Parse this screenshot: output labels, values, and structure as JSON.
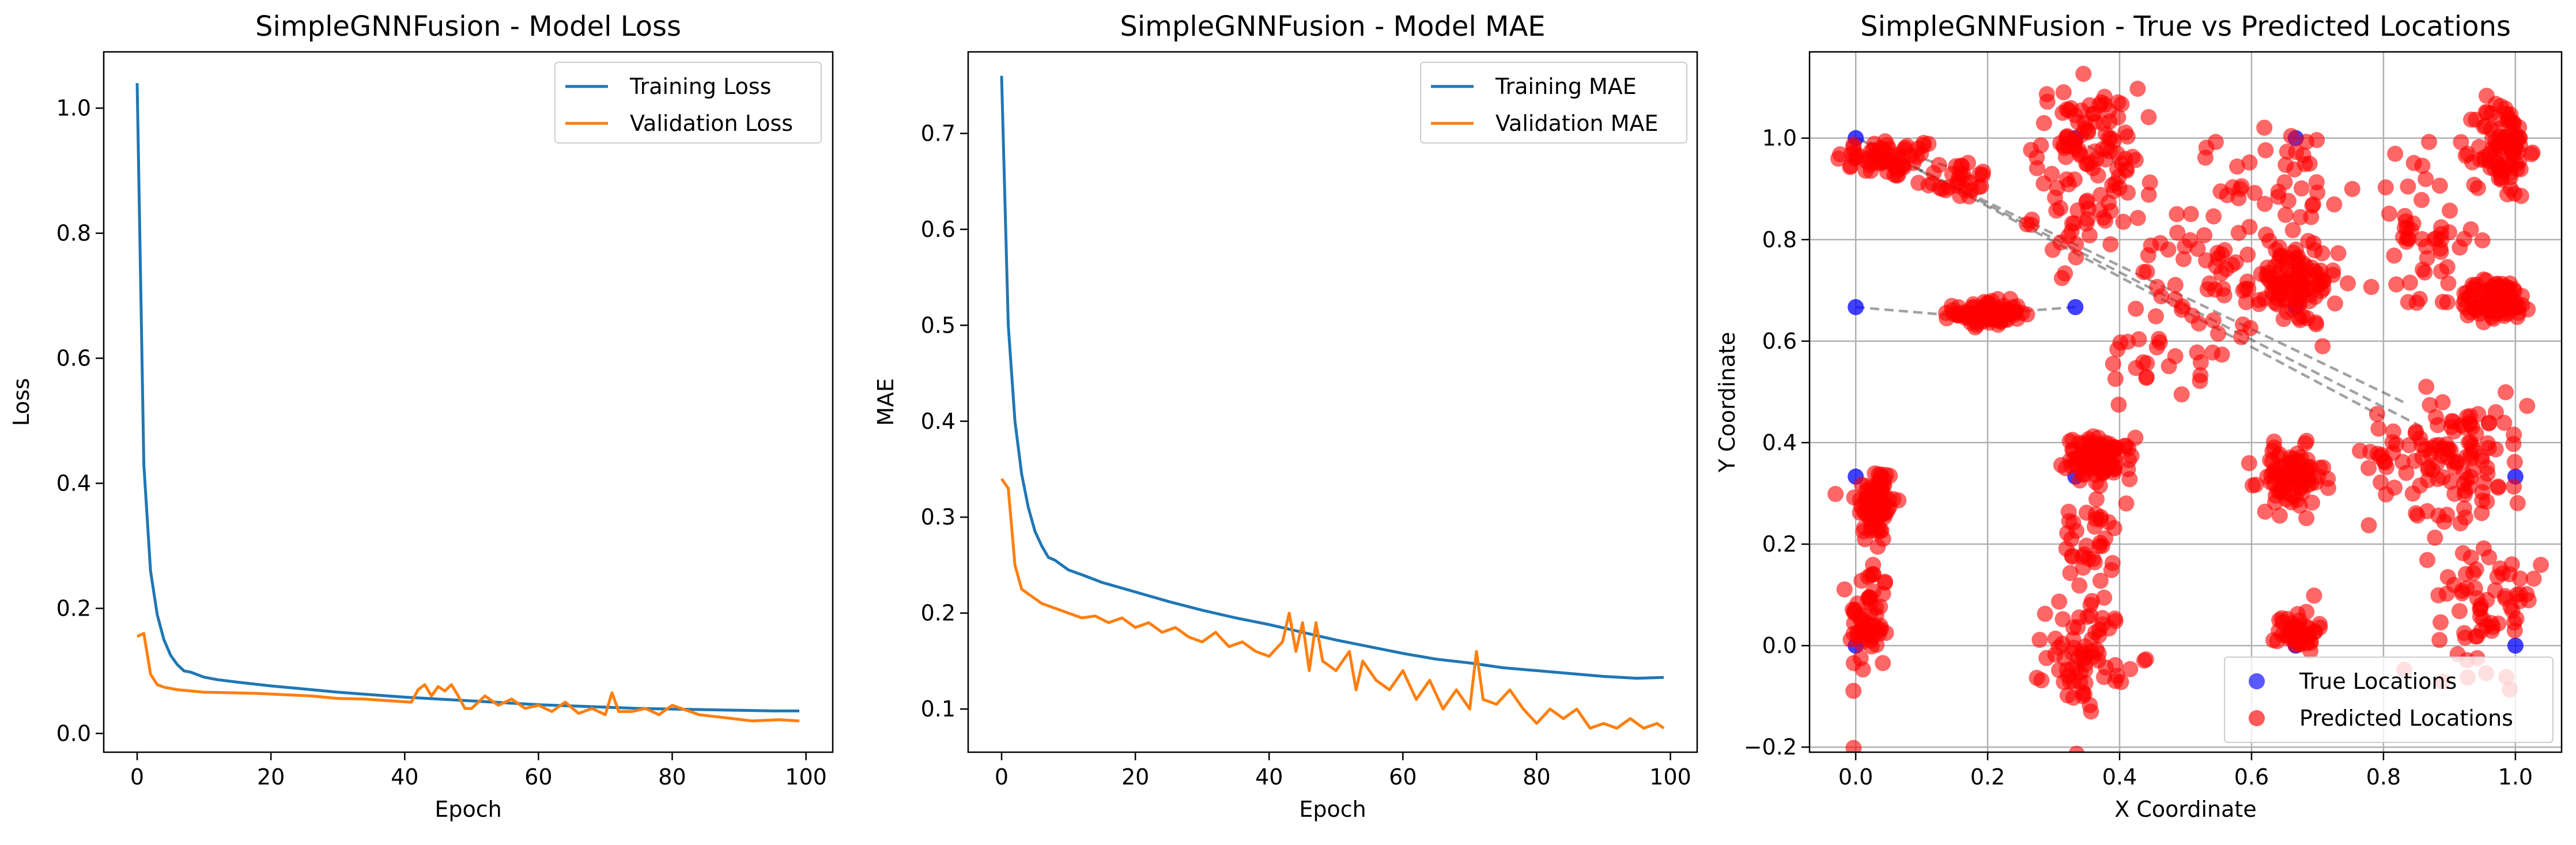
{
  "chart_data": [
    {
      "type": "line",
      "title": "SimpleGNNFusion - Model Loss",
      "xlabel": "Epoch",
      "ylabel": "Loss",
      "xlim": [
        -5,
        104
      ],
      "ylim": [
        -0.03,
        1.09
      ],
      "xticks": [
        0,
        20,
        40,
        60,
        80,
        100
      ],
      "yticks": [
        0.0,
        0.2,
        0.4,
        0.6,
        0.8,
        1.0
      ],
      "ytick_labels": [
        "0.0",
        "0.2",
        "0.4",
        "0.6",
        "0.8",
        "1.0"
      ],
      "grid": false,
      "legend_position": "top-right",
      "series": [
        {
          "name": "Training Loss",
          "color": "#1f77b4",
          "x": [
            0,
            1,
            2,
            3,
            4,
            5,
            6,
            7,
            8,
            10,
            12,
            15,
            20,
            25,
            30,
            35,
            40,
            45,
            50,
            55,
            60,
            65,
            70,
            75,
            80,
            85,
            90,
            95,
            99
          ],
          "y": [
            1.04,
            0.43,
            0.26,
            0.19,
            0.15,
            0.125,
            0.11,
            0.1,
            0.098,
            0.09,
            0.086,
            0.082,
            0.076,
            0.071,
            0.066,
            0.062,
            0.058,
            0.055,
            0.052,
            0.049,
            0.046,
            0.044,
            0.042,
            0.04,
            0.039,
            0.038,
            0.037,
            0.036,
            0.036
          ]
        },
        {
          "name": "Validation Loss",
          "color": "#ff7f0e",
          "x": [
            0,
            1,
            2,
            3,
            4,
            6,
            8,
            10,
            14,
            18,
            22,
            26,
            30,
            34,
            38,
            41,
            42,
            43,
            44,
            45,
            46,
            47,
            48,
            49,
            50,
            52,
            54,
            56,
            58,
            60,
            62,
            64,
            66,
            68,
            70,
            71,
            72,
            74,
            76,
            78,
            80,
            84,
            88,
            92,
            96,
            99
          ],
          "y": [
            0.155,
            0.16,
            0.095,
            0.078,
            0.074,
            0.07,
            0.068,
            0.066,
            0.065,
            0.064,
            0.062,
            0.06,
            0.056,
            0.055,
            0.052,
            0.05,
            0.07,
            0.078,
            0.06,
            0.075,
            0.068,
            0.078,
            0.06,
            0.04,
            0.04,
            0.06,
            0.045,
            0.055,
            0.04,
            0.045,
            0.035,
            0.05,
            0.032,
            0.04,
            0.03,
            0.065,
            0.035,
            0.035,
            0.04,
            0.03,
            0.045,
            0.03,
            0.025,
            0.02,
            0.022,
            0.02
          ]
        }
      ]
    },
    {
      "type": "line",
      "title": "SimpleGNNFusion - Model MAE",
      "xlabel": "Epoch",
      "ylabel": "MAE",
      "xlim": [
        -5,
        104
      ],
      "ylim": [
        0.055,
        0.785
      ],
      "xticks": [
        0,
        20,
        40,
        60,
        80,
        100
      ],
      "yticks": [
        0.1,
        0.2,
        0.3,
        0.4,
        0.5,
        0.6,
        0.7
      ],
      "ytick_labels": [
        "0.1",
        "0.2",
        "0.3",
        "0.4",
        "0.5",
        "0.6",
        "0.7"
      ],
      "grid": false,
      "legend_position": "top-right",
      "series": [
        {
          "name": "Training MAE",
          "color": "#1f77b4",
          "x": [
            0,
            1,
            2,
            3,
            4,
            5,
            6,
            7,
            8,
            10,
            12,
            15,
            20,
            25,
            30,
            35,
            40,
            45,
            50,
            55,
            60,
            65,
            70,
            75,
            80,
            85,
            90,
            95,
            99
          ],
          "y": [
            0.76,
            0.5,
            0.4,
            0.345,
            0.31,
            0.285,
            0.27,
            0.258,
            0.255,
            0.245,
            0.24,
            0.232,
            0.222,
            0.212,
            0.203,
            0.195,
            0.188,
            0.18,
            0.172,
            0.165,
            0.158,
            0.152,
            0.148,
            0.143,
            0.14,
            0.137,
            0.134,
            0.132,
            0.133
          ]
        },
        {
          "name": "Validation MAE",
          "color": "#ff7f0e",
          "x": [
            0,
            1,
            2,
            3,
            4,
            6,
            8,
            10,
            12,
            14,
            16,
            18,
            20,
            22,
            24,
            26,
            28,
            30,
            32,
            34,
            36,
            38,
            40,
            42,
            43,
            44,
            45,
            46,
            47,
            48,
            50,
            52,
            53,
            54,
            56,
            58,
            60,
            62,
            64,
            66,
            68,
            70,
            71,
            72,
            74,
            76,
            78,
            80,
            82,
            84,
            86,
            88,
            90,
            92,
            94,
            96,
            98,
            99
          ],
          "y": [
            0.34,
            0.33,
            0.25,
            0.225,
            0.22,
            0.21,
            0.205,
            0.2,
            0.195,
            0.197,
            0.19,
            0.195,
            0.185,
            0.19,
            0.18,
            0.185,
            0.175,
            0.17,
            0.18,
            0.165,
            0.17,
            0.16,
            0.155,
            0.17,
            0.2,
            0.16,
            0.19,
            0.14,
            0.19,
            0.15,
            0.14,
            0.16,
            0.12,
            0.15,
            0.13,
            0.12,
            0.14,
            0.11,
            0.13,
            0.1,
            0.12,
            0.1,
            0.16,
            0.11,
            0.105,
            0.12,
            0.1,
            0.085,
            0.1,
            0.09,
            0.1,
            0.08,
            0.085,
            0.08,
            0.09,
            0.08,
            0.085,
            0.08
          ]
        }
      ]
    },
    {
      "type": "scatter",
      "title": "SimpleGNNFusion - True vs Predicted Locations",
      "xlabel": "X Coordinate",
      "ylabel": "Y Coordinate",
      "xlim": [
        -0.07,
        1.07
      ],
      "ylim": [
        -0.21,
        1.17
      ],
      "xticks": [
        0.0,
        0.2,
        0.4,
        0.6,
        0.8,
        1.0
      ],
      "xtick_labels": [
        "0.0",
        "0.2",
        "0.4",
        "0.6",
        "0.8",
        "1.0"
      ],
      "yticks": [
        -0.2,
        0.0,
        0.2,
        0.4,
        0.6,
        0.8,
        1.0
      ],
      "ytick_labels": [
        "−0.2",
        "0.0",
        "0.2",
        "0.4",
        "0.6",
        "0.8",
        "1.0"
      ],
      "grid": true,
      "legend_position": "bottom-right",
      "series": [
        {
          "name": "True Locations",
          "color": "#0000ff",
          "points": [
            [
              0,
              0
            ],
            [
              0,
              0.333
            ],
            [
              0,
              0.667
            ],
            [
              0,
              1
            ],
            [
              0.333,
              0.333
            ],
            [
              0.333,
              0.667
            ],
            [
              0.333,
              1
            ],
            [
              0.667,
              0
            ],
            [
              0.667,
              0.333
            ],
            [
              0.667,
              0.667
            ],
            [
              0.667,
              1
            ],
            [
              1,
              0
            ],
            [
              1,
              0.333
            ],
            [
              1,
              0.667
            ],
            [
              1,
              1
            ]
          ]
        },
        {
          "name": "Predicted Locations",
          "color": "#ff0000",
          "clusters": [
            {
              "cx": 0.05,
              "cy": 0.96,
              "sx": 0.04,
              "sy": 0.02,
              "n": 60
            },
            {
              "cx": 0.15,
              "cy": 0.92,
              "sx": 0.03,
              "sy": 0.02,
              "n": 30
            },
            {
              "cx": 0.03,
              "cy": 0.28,
              "sx": 0.015,
              "sy": 0.04,
              "n": 80
            },
            {
              "cx": 0.02,
              "cy": 0.05,
              "sx": 0.015,
              "sy": 0.06,
              "n": 60
            },
            {
              "cx": 0.2,
              "cy": 0.655,
              "sx": 0.025,
              "sy": 0.012,
              "n": 90
            },
            {
              "cx": 0.35,
              "cy": 1.0,
              "sx": 0.04,
              "sy": 0.05,
              "n": 80
            },
            {
              "cx": 0.35,
              "cy": 0.85,
              "sx": 0.04,
              "sy": 0.05,
              "n": 40
            },
            {
              "cx": 0.37,
              "cy": 0.37,
              "sx": 0.025,
              "sy": 0.02,
              "n": 100
            },
            {
              "cx": 0.35,
              "cy": 0.2,
              "sx": 0.02,
              "sy": 0.06,
              "n": 40
            },
            {
              "cx": 0.35,
              "cy": -0.02,
              "sx": 0.03,
              "sy": 0.05,
              "n": 70
            },
            {
              "cx": 0.66,
              "cy": 0.71,
              "sx": 0.035,
              "sy": 0.04,
              "n": 110
            },
            {
              "cx": 0.66,
              "cy": 0.33,
              "sx": 0.025,
              "sy": 0.03,
              "n": 90
            },
            {
              "cx": 0.67,
              "cy": 0.03,
              "sx": 0.015,
              "sy": 0.02,
              "n": 50
            },
            {
              "cx": 0.66,
              "cy": 0.9,
              "sx": 0.05,
              "sy": 0.07,
              "n": 40
            },
            {
              "cx": 0.98,
              "cy": 0.98,
              "sx": 0.02,
              "sy": 0.05,
              "n": 90
            },
            {
              "cx": 0.97,
              "cy": 0.68,
              "sx": 0.03,
              "sy": 0.02,
              "n": 90
            },
            {
              "cx": 0.9,
              "cy": 0.38,
              "sx": 0.06,
              "sy": 0.06,
              "n": 120
            },
            {
              "cx": 0.96,
              "cy": 0.1,
              "sx": 0.04,
              "sy": 0.07,
              "n": 70
            },
            {
              "cx": 0.86,
              "cy": 0.8,
              "sx": 0.04,
              "sy": 0.08,
              "n": 50
            },
            {
              "cx": 0.52,
              "cy": 0.73,
              "sx": 0.06,
              "sy": 0.1,
              "n": 60
            },
            {
              "cx": 0.44,
              "cy": 0.58,
              "sx": 0.03,
              "sy": 0.06,
              "n": 20
            }
          ]
        }
      ],
      "connections": [
        [
          [
            0,
            0.667
          ],
          [
            0.2,
            0.645
          ]
        ],
        [
          [
            0.333,
            0.667
          ],
          [
            0.21,
            0.655
          ]
        ],
        [
          [
            0,
            1
          ],
          [
            0.15,
            0.94
          ]
        ],
        [
          [
            0.333,
            1
          ],
          [
            0.42,
            0.93
          ]
        ],
        [
          [
            0.333,
            0.333
          ],
          [
            0.37,
            0.37
          ]
        ],
        [
          [
            0.02,
            0.99
          ],
          [
            0.8,
            0.45
          ]
        ],
        [
          [
            0.03,
            0.98
          ],
          [
            0.83,
            0.48
          ]
        ],
        [
          [
            0.01,
            0.995
          ],
          [
            0.86,
            0.43
          ]
        ]
      ]
    }
  ]
}
